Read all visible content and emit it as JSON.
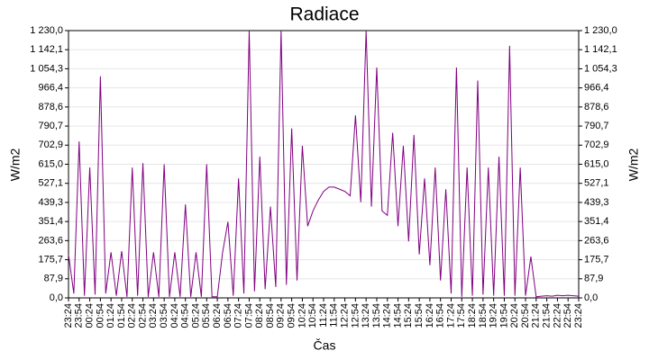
{
  "chart_data": {
    "type": "line",
    "title": "Radiace",
    "x_label": "Čas",
    "y_label": "W/m2",
    "categories": [
      "23:24",
      null,
      "23:54",
      null,
      "00:24",
      null,
      "00:54",
      null,
      "01:24",
      null,
      "01:54",
      null,
      "02:24",
      null,
      "02:54",
      null,
      "03:24",
      null,
      "03:54",
      null,
      "04:24",
      null,
      "04:54",
      null,
      "05:24",
      null,
      "05:54",
      null,
      "06:24",
      null,
      "06:54",
      null,
      "07:24",
      null,
      "07:54",
      null,
      "08:24",
      null,
      "08:54",
      null,
      "09:24",
      null,
      "09:54",
      null,
      "10:24",
      null,
      "10:54",
      null,
      "11:24",
      null,
      "11:54",
      null,
      "12:24",
      null,
      "12:54",
      null,
      "13:24",
      null,
      "13:54",
      null,
      "14:24",
      null,
      "14:54",
      null,
      "15:24",
      null,
      "15:54",
      null,
      "16:24",
      null,
      "16:54",
      null,
      "17:24",
      null,
      "17:54",
      null,
      "18:24",
      null,
      "18:54",
      null,
      "19:24",
      null,
      "19:54",
      null,
      "20:24",
      null,
      "20:54",
      null,
      "21:24",
      null,
      "21:54",
      null,
      "22:24",
      null,
      "22:54",
      null,
      "23:24"
    ],
    "series": [
      {
        "color": "#800080",
        "values": [
          200,
          20,
          720,
          10,
          600,
          15,
          1020,
          20,
          210,
          10,
          215,
          5,
          600,
          10,
          620,
          5,
          210,
          5,
          615,
          5,
          210,
          5,
          430,
          5,
          210,
          5,
          615,
          5,
          5,
          210,
          350,
          10,
          550,
          20,
          1230,
          30,
          650,
          40,
          420,
          50,
          1230,
          60,
          780,
          80,
          700,
          330,
          400,
          450,
          490,
          510,
          510,
          500,
          490,
          470,
          840,
          440,
          1230,
          420,
          1060,
          400,
          380,
          760,
          330,
          700,
          260,
          750,
          200,
          550,
          150,
          600,
          80,
          500,
          20,
          1060,
          5,
          600,
          10,
          1000,
          15,
          600,
          10,
          650,
          10,
          1160,
          10,
          600,
          10,
          190,
          5,
          8,
          10,
          8,
          12,
          10,
          12,
          10,
          8
        ]
      }
    ],
    "ylim": [
      0,
      1230
    ],
    "yticks": [
      {
        "value": 0,
        "label": "0,0"
      },
      {
        "value": 87.9,
        "label": "87,9"
      },
      {
        "value": 175.7,
        "label": "175,7"
      },
      {
        "value": 263.6,
        "label": "263,6"
      },
      {
        "value": 351.4,
        "label": "351,4"
      },
      {
        "value": 439.3,
        "label": "439,3"
      },
      {
        "value": 527.1,
        "label": "527,1"
      },
      {
        "value": 615,
        "label": "615,0"
      },
      {
        "value": 702.9,
        "label": "702,9"
      },
      {
        "value": 790.7,
        "label": "790,7"
      },
      {
        "value": 878.6,
        "label": "878,6"
      },
      {
        "value": 966.4,
        "label": "966,4"
      },
      {
        "value": 1054.3,
        "label": "1 054,3"
      },
      {
        "value": 1142.1,
        "label": "1 142,1"
      },
      {
        "value": 1230,
        "label": "1 230,0"
      }
    ],
    "grid": true
  }
}
